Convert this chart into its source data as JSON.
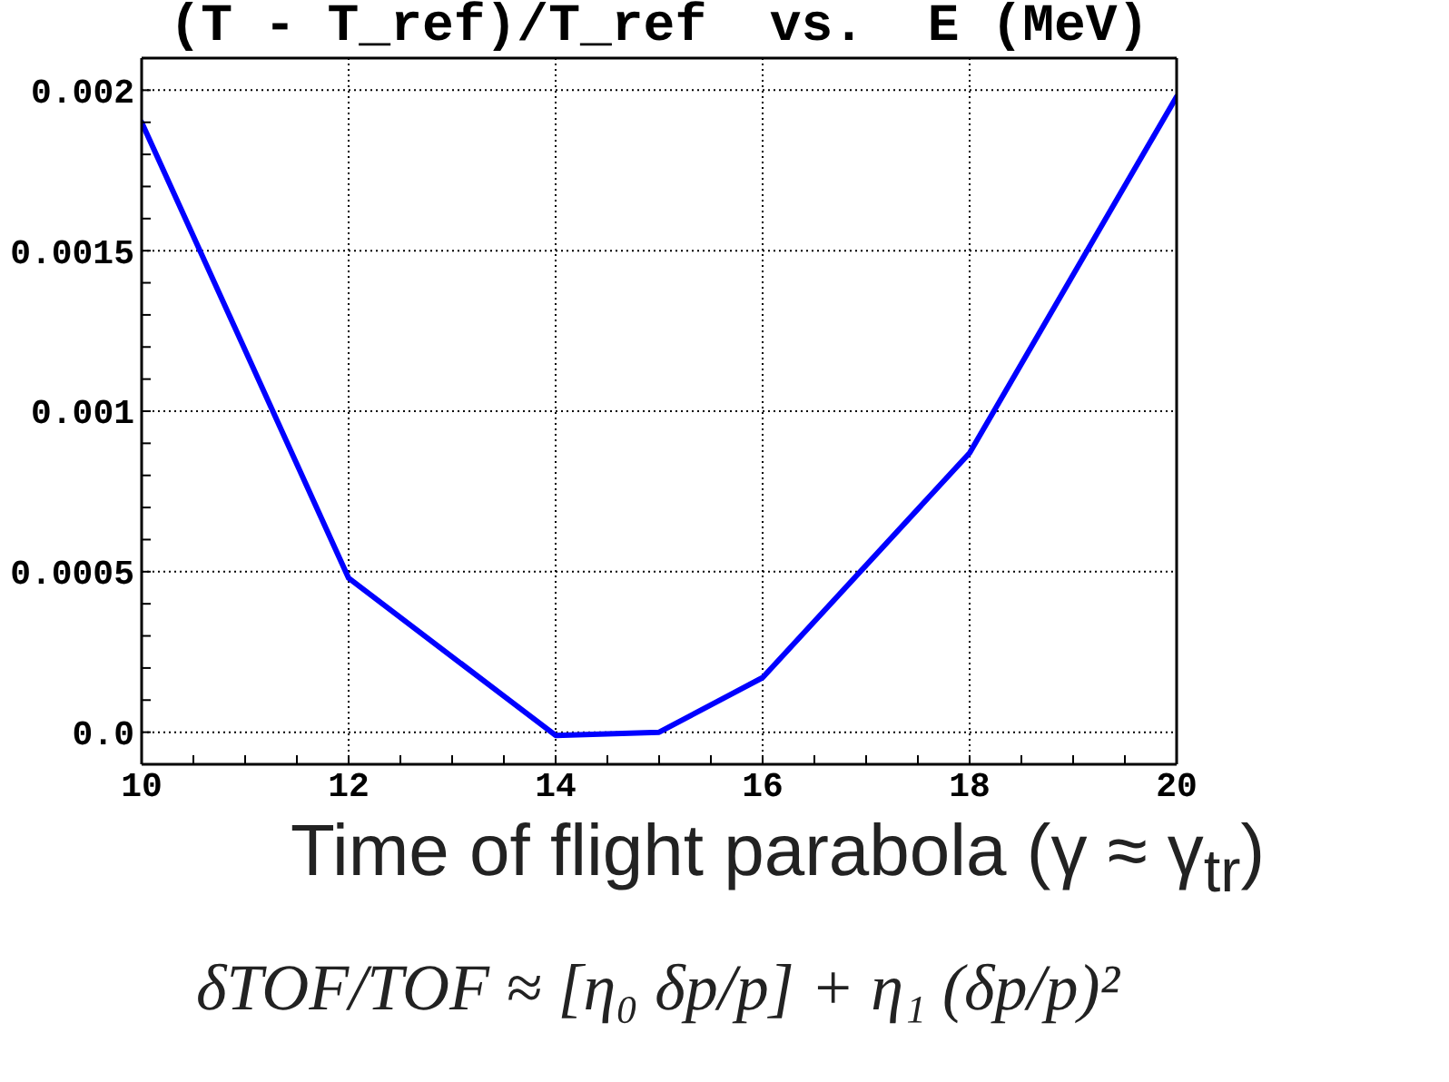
{
  "chart_data": {
    "type": "line",
    "title": "(T - T_ref)/T_ref  vs.  E (MeV)",
    "x": [
      10,
      12,
      14,
      15,
      16,
      18,
      20
    ],
    "series": [
      {
        "color": "#0000ff",
        "values": [
          0.0019,
          0.00048,
          -1e-05,
          0,
          0.00017,
          0.00087,
          0.00198
        ]
      }
    ],
    "xlim": [
      10,
      20
    ],
    "xticks": [
      10,
      {
        "value": 10.5,
        "label": null
      },
      {
        "value": 11,
        "label": null
      },
      {
        "value": 11.5,
        "label": null
      },
      12,
      {
        "value": 12.5,
        "label": null
      },
      {
        "value": 13,
        "label": null
      },
      {
        "value": 13.5,
        "label": null
      },
      14,
      {
        "value": 14.5,
        "label": null
      },
      {
        "value": 15,
        "label": null
      },
      {
        "value": 15.5,
        "label": null
      },
      16,
      {
        "value": 16.5,
        "label": null
      },
      {
        "value": 17,
        "label": null
      },
      {
        "value": 17.5,
        "label": null
      },
      18,
      {
        "value": 18.5,
        "label": null
      },
      {
        "value": 19,
        "label": null
      },
      {
        "value": 19.5,
        "label": null
      },
      20
    ],
    "ylim": [
      -0.0001,
      0.0021
    ],
    "yticks": [
      {
        "value": 0,
        "label": "0.0"
      },
      {
        "value": 0.0001,
        "label": null
      },
      {
        "value": 0.0002,
        "label": null
      },
      {
        "value": 0.0003,
        "label": null
      },
      {
        "value": 0.0004,
        "label": null
      },
      0.0005,
      {
        "value": 0.0006,
        "label": null
      },
      {
        "value": 0.0007,
        "label": null
      },
      {
        "value": 0.0008,
        "label": null
      },
      {
        "value": 0.0009,
        "label": null
      },
      0.001,
      {
        "value": 0.0011,
        "label": null
      },
      {
        "value": 0.0012,
        "label": null
      },
      {
        "value": 0.0013,
        "label": null
      },
      {
        "value": 0.0014,
        "label": null
      },
      0.0015,
      {
        "value": 0.0016,
        "label": null
      },
      {
        "value": 0.0017,
        "label": null
      },
      {
        "value": 0.0018,
        "label": null
      },
      {
        "value": 0.0019,
        "label": null
      },
      0.002
    ],
    "grid": true,
    "line_style": "solid",
    "annotations": [
      "Time of flight parabola (γ ≈ γ$_{tr}$)",
      "δTOF/TOF ≈ [η₀ δp/p] + η₁ (δp/p)²"
    ]
  }
}
